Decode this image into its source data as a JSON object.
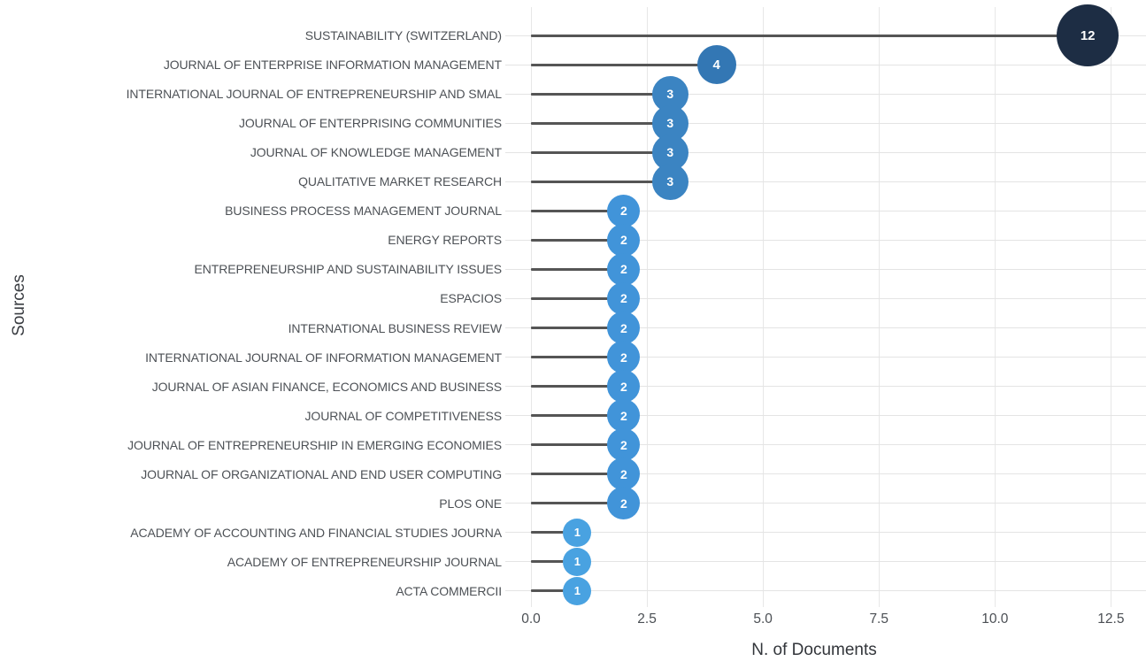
{
  "chart_data": {
    "type": "lollipop",
    "orientation": "horizontal",
    "title": "",
    "xlabel": "N. of Documents",
    "ylabel": "Sources",
    "xlim": [
      0,
      13.25
    ],
    "x_ticks": [
      0,
      2.5,
      5,
      7.5,
      10,
      12.5
    ],
    "x_tick_labels": [
      "0.0",
      "2.5",
      "5.0",
      "7.5",
      "10.0",
      "12.5"
    ],
    "grid": true,
    "legend": false,
    "items": [
      {
        "label": "SUSTAINABILITY (SWITZERLAND)",
        "value": 12
      },
      {
        "label": "JOURNAL OF ENTERPRISE INFORMATION MANAGEMENT",
        "value": 4
      },
      {
        "label": "INTERNATIONAL JOURNAL OF ENTREPRENEURSHIP AND SMAL",
        "value": 3
      },
      {
        "label": "JOURNAL OF ENTERPRISING COMMUNITIES",
        "value": 3
      },
      {
        "label": "JOURNAL OF KNOWLEDGE MANAGEMENT",
        "value": 3
      },
      {
        "label": "QUALITATIVE MARKET RESEARCH",
        "value": 3
      },
      {
        "label": "BUSINESS PROCESS MANAGEMENT JOURNAL",
        "value": 2
      },
      {
        "label": "ENERGY REPORTS",
        "value": 2
      },
      {
        "label": "ENTREPRENEURSHIP AND SUSTAINABILITY ISSUES",
        "value": 2
      },
      {
        "label": "ESPACIOS",
        "value": 2
      },
      {
        "label": "INTERNATIONAL BUSINESS REVIEW",
        "value": 2
      },
      {
        "label": "INTERNATIONAL JOURNAL OF INFORMATION MANAGEMENT",
        "value": 2
      },
      {
        "label": "JOURNAL OF ASIAN FINANCE, ECONOMICS AND BUSINESS",
        "value": 2
      },
      {
        "label": "JOURNAL OF COMPETITIVENESS",
        "value": 2
      },
      {
        "label": "JOURNAL OF ENTREPRENEURSHIP IN EMERGING ECONOMIES",
        "value": 2
      },
      {
        "label": "JOURNAL OF ORGANIZATIONAL AND END USER COMPUTING",
        "value": 2
      },
      {
        "label": "PLOS ONE",
        "value": 2
      },
      {
        "label": "ACADEMY OF ACCOUNTING AND FINANCIAL STUDIES JOURNA",
        "value": 1
      },
      {
        "label": "ACADEMY OF ENTREPRENEURSHIP JOURNAL",
        "value": 1
      },
      {
        "label": "ACTA COMMERCII",
        "value": 1
      }
    ],
    "style": {
      "background": "#ffffff",
      "stem_color": "#555555",
      "hgrid_color": "#e4e4e4",
      "vgrid_color": "#e7e7e7",
      "label_color": "#4d5156",
      "tick_color": "#4b4f54",
      "axis_title_color": "#33363b",
      "point_label_color": "#ffffff",
      "point_colors": {
        "1": "#49a2e1",
        "2": "#4194d9",
        "3": "#3b84c2",
        "4": "#3377b4",
        "12": "#1d2d44"
      },
      "point_diameters": {
        "1": 32,
        "2": 37,
        "3": 41,
        "4": 44,
        "12": 70
      },
      "point_font_sizes": {
        "1": 13,
        "2": 14,
        "3": 14,
        "4": 15,
        "12": 15
      }
    }
  }
}
